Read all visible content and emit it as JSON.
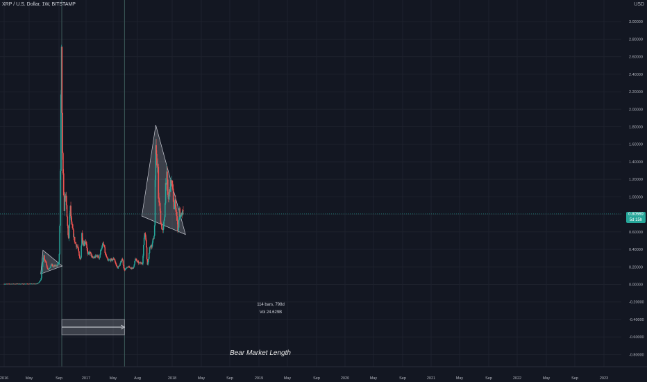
{
  "header": {
    "symbol_title": "XRP / U.S. Dollar, 1W, BITSTAMP",
    "currency": "USD"
  },
  "price_tag": {
    "price": "0.80569",
    "countdown": "5d 15h"
  },
  "measure": {
    "line1": "114 bars, 798d",
    "line2": "Vol 24.629B"
  },
  "annotation": "Bear Market Length",
  "colors": {
    "background": "#131722",
    "up": "#26a69a",
    "down": "#ef5350",
    "grid": "#1e222d",
    "pattern": "#d1d4dc"
  },
  "chart_data": {
    "type": "candlestick",
    "title": "XRP / U.S. Dollar, 1W, BITSTAMP",
    "ylabel": "USD",
    "ylim": [
      -0.9,
      3.2
    ],
    "yticks": [
      "3.00000",
      "2.80000",
      "2.60000",
      "2.40000",
      "2.20000",
      "2.00000",
      "1.80000",
      "1.60000",
      "1.40000",
      "1.20000",
      "1.00000",
      "0.80000",
      "0.60000",
      "0.40000",
      "0.20000",
      "0.00000",
      "-0.20000",
      "-0.40000",
      "-0.60000",
      "-0.80000"
    ],
    "xticks": [
      "2016",
      "May",
      "Sep",
      "2017",
      "May",
      "Aug",
      "2018",
      "May",
      "Sep",
      "2019",
      "May",
      "Sep",
      "2020",
      "May",
      "Sep",
      "2021",
      "May",
      "Sep",
      "2022",
      "May",
      "Sep",
      "2023"
    ],
    "grid": true,
    "path": [
      [
        "2016-01",
        0.006
      ],
      [
        "2016-06",
        0.007
      ],
      [
        "2017-01",
        0.007
      ],
      [
        "2017-03",
        0.008
      ],
      [
        "2017-03-20",
        0.02
      ],
      [
        "2017-04",
        0.035
      ],
      [
        "2017-04-20",
        0.06
      ],
      [
        "2017-05-03",
        0.18
      ],
      [
        "2017-05-15",
        0.3
      ],
      [
        "2017-05-24",
        0.34
      ],
      [
        "2017-06-05",
        0.28
      ],
      [
        "2017-06-20",
        0.26
      ],
      [
        "2017-07-05",
        0.2
      ],
      [
        "2017-07-20",
        0.17
      ],
      [
        "2017-08-05",
        0.18
      ],
      [
        "2017-08-20",
        0.21
      ],
      [
        "2017-09-05",
        0.23
      ],
      [
        "2017-09-20",
        0.2
      ],
      [
        "2017-10-05",
        0.21
      ],
      [
        "2017-10-20",
        0.21
      ],
      [
        "2017-11-05",
        0.21
      ],
      [
        "2017-11-20",
        0.24
      ],
      [
        "2017-12-05",
        0.25
      ],
      [
        "2017-12-12",
        0.45
      ],
      [
        "2017-12-20",
        1.05
      ],
      [
        "2017-12-28",
        2.0
      ],
      [
        "2018-01-04",
        2.75
      ],
      [
        "2018-01-10",
        2.0
      ],
      [
        "2018-01-17",
        1.6
      ],
      [
        "2018-01-24",
        1.3
      ],
      [
        "2018-02-01",
        1.0
      ],
      [
        "2018-02-08",
        0.85
      ],
      [
        "2018-02-20",
        1.05
      ],
      [
        "2018-03-05",
        0.95
      ],
      [
        "2018-03-20",
        0.7
      ],
      [
        "2018-04-05",
        0.5
      ],
      [
        "2018-04-25",
        0.9
      ],
      [
        "2018-05-10",
        0.7
      ],
      [
        "2018-06-01",
        0.6
      ],
      [
        "2018-06-20",
        0.5
      ],
      [
        "2018-07-10",
        0.45
      ],
      [
        "2018-08-01",
        0.42
      ],
      [
        "2018-08-20",
        0.3
      ],
      [
        "2018-09-05",
        0.28
      ],
      [
        "2018-09-21",
        0.58
      ],
      [
        "2018-10-05",
        0.48
      ],
      [
        "2018-10-20",
        0.46
      ],
      [
        "2018-11-05",
        0.51
      ],
      [
        "2018-11-20",
        0.45
      ],
      [
        "2018-12-05",
        0.33
      ],
      [
        "2018-12-20",
        0.36
      ],
      [
        "2019-01-05",
        0.36
      ],
      [
        "2019-02-01",
        0.3
      ],
      [
        "2019-03-01",
        0.31
      ],
      [
        "2019-04-01",
        0.33
      ],
      [
        "2019-05-01",
        0.3
      ],
      [
        "2019-05-25",
        0.42
      ],
      [
        "2019-06-25",
        0.46
      ],
      [
        "2019-07-15",
        0.35
      ],
      [
        "2019-08-15",
        0.27
      ],
      [
        "2019-09-20",
        0.28
      ],
      [
        "2019-10-15",
        0.28
      ],
      [
        "2019-11-05",
        0.3
      ],
      [
        "2019-11-25",
        0.23
      ],
      [
        "2019-12-20",
        0.19
      ],
      [
        "2020-01-20",
        0.23
      ],
      [
        "2020-02-15",
        0.3
      ],
      [
        "2020-03-12",
        0.16
      ],
      [
        "2020-04-01",
        0.18
      ],
      [
        "2020-05-01",
        0.2
      ],
      [
        "2020-06-01",
        0.19
      ],
      [
        "2020-07-01",
        0.18
      ],
      [
        "2020-08-01",
        0.29
      ],
      [
        "2020-09-01",
        0.25
      ],
      [
        "2020-10-01",
        0.24
      ],
      [
        "2020-11-01",
        0.25
      ],
      [
        "2020-11-24",
        0.6
      ],
      [
        "2020-12-10",
        0.55
      ],
      [
        "2020-12-29",
        0.22
      ],
      [
        "2021-01-15",
        0.3
      ],
      [
        "2021-02-01",
        0.44
      ],
      [
        "2021-03-01",
        0.45
      ],
      [
        "2021-04-01",
        0.6
      ],
      [
        "2021-04-14",
        1.56
      ],
      [
        "2021-04-28",
        1.36
      ],
      [
        "2021-05-12",
        1.45
      ],
      [
        "2021-05-20",
        0.95
      ],
      [
        "2021-06-01",
        0.95
      ],
      [
        "2021-06-20",
        0.7
      ],
      [
        "2021-07-15",
        0.6
      ],
      [
        "2021-08-05",
        0.75
      ],
      [
        "2021-08-20",
        1.15
      ],
      [
        "2021-09-05",
        1.25
      ],
      [
        "2021-09-20",
        0.95
      ],
      [
        "2021-10-05",
        1.05
      ],
      [
        "2021-11-01",
        1.2
      ],
      [
        "2021-11-20",
        1.05
      ],
      [
        "2021-12-05",
        0.85
      ],
      [
        "2021-12-20",
        0.95
      ],
      [
        "2022-01-10",
        0.75
      ],
      [
        "2022-01-25",
        0.6
      ],
      [
        "2022-02-10",
        0.85
      ],
      [
        "2022-02-25",
        0.75
      ],
      [
        "2022-03-15",
        0.8
      ],
      [
        "2022-03-25",
        0.81
      ]
    ],
    "patterns": [
      {
        "name": "triangle-2017",
        "points": [
          [
            "2017-05-08",
            0.39
          ],
          [
            "2017-04-10",
            0.12
          ],
          [
            "2018-01-08",
            0.21
          ]
        ]
      },
      {
        "name": "triangle-2021",
        "points": [
          [
            "2021-04-10",
            1.82
          ],
          [
            "2020-10-15",
            0.78
          ],
          [
            "2022-04-22",
            0.57
          ]
        ]
      }
    ],
    "vertical_lines": [
      "2018-01-02",
      "2020-03-09"
    ],
    "measure_range": {
      "from": "2018-01-02",
      "to": "2020-03-09",
      "bars": 114,
      "days": 798,
      "volume": "24.629B"
    },
    "last_price": 0.80569
  }
}
